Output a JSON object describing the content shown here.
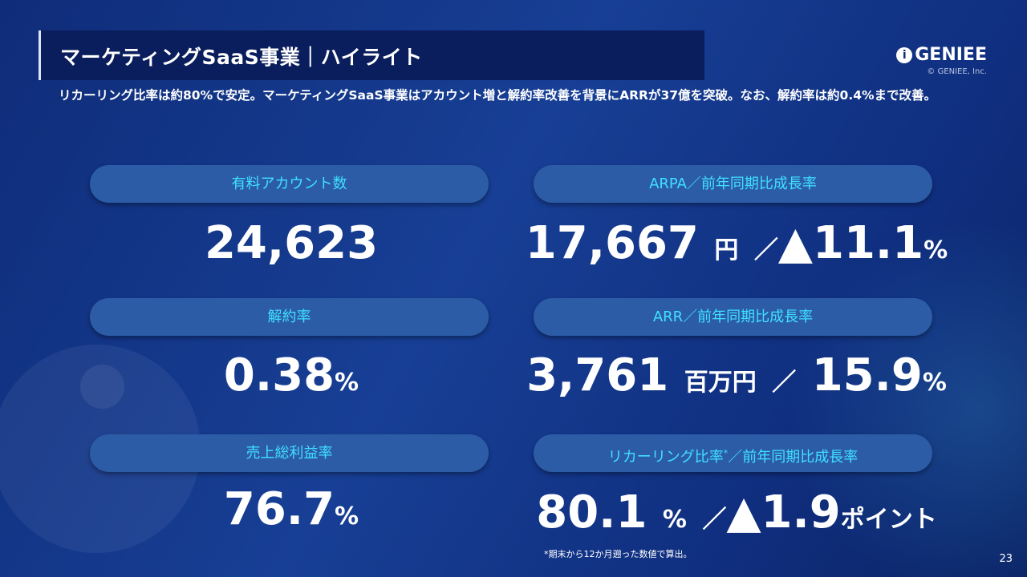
{
  "header": {
    "title": "マーケティングSaaS事業｜ハイライト",
    "logo": "GENIEE",
    "copyright": "© GENIEE, Inc."
  },
  "lead": "リカーリング比率は約80%で安定。マーケティングSaaS事業はアカウント増と解約率改善を背景にARRが37億を突破。なお、解約率は約0.4%まで改善。",
  "kpis": [
    {
      "label": "有料アカウント数",
      "value": "24,623",
      "unit": "",
      "sep": "",
      "value2": "",
      "unit2": ""
    },
    {
      "label": "ARPA／前年同期比成長率",
      "value": "17,667",
      "unit": "円",
      "sep": "／",
      "value2": "▲11.1",
      "unit2": "%"
    },
    {
      "label": "解約率",
      "value": "0.38",
      "unit": "%",
      "sep": "",
      "value2": "",
      "unit2": ""
    },
    {
      "label": "ARR／前年同期比成長率",
      "value": "3,761",
      "unit": "百万円",
      "sep": "／",
      "value2": "15.9",
      "unit2": "%"
    },
    {
      "label": "売上総利益率",
      "value": "76.7",
      "unit": "%",
      "sep": "",
      "value2": "",
      "unit2": ""
    },
    {
      "label": "リカーリング比率",
      "label_mark": "*",
      "label_rest": "／前年同期比成長率",
      "value": "80.1",
      "unit": "%",
      "sep": "／",
      "value2": "▲1.9",
      "unit2": "ポイント"
    }
  ],
  "footnote": "*期末から12か月遡った数値で算出。",
  "page_number": "23"
}
